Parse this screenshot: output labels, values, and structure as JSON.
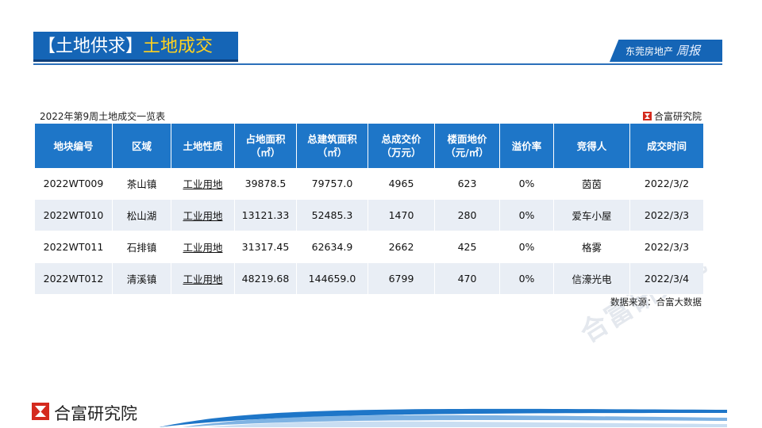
{
  "header": {
    "bracket_title": "【土地供求】",
    "highlight_title": "土地成交",
    "brand_label": "东莞房地产",
    "brand_script": "周报"
  },
  "caption": "2022年第9周土地成交一览表",
  "corner_logo_text": "合富研究院",
  "table": {
    "headers": [
      "地块编号",
      "区域",
      "土地性质",
      "占地面积\n（㎡）",
      "总建筑面积\n（㎡）",
      "总成交价\n（万元）",
      "楼面地价\n（元/㎡）",
      "溢价率",
      "竞得人",
      "成交时间"
    ],
    "rows": [
      [
        "2022WT009",
        "茶山镇",
        "工业用地",
        "39878.5",
        "79757.0",
        "4965",
        "623",
        "0%",
        "茵茵",
        "2022/3/2"
      ],
      [
        "2022WT010",
        "松山湖",
        "工业用地",
        "13121.33",
        "52485.3",
        "1470",
        "280",
        "0%",
        "爱车小屋",
        "2022/3/3"
      ],
      [
        "2022WT011",
        "石排镇",
        "工业用地",
        "31317.45",
        "62634.9",
        "2662",
        "425",
        "0%",
        "格雾",
        "2022/3/3"
      ],
      [
        "2022WT012",
        "清溪镇",
        "工业用地",
        "48219.68",
        "144659.0",
        "6799",
        "470",
        "0%",
        "信濠光电",
        "2022/3/4"
      ]
    ]
  },
  "source": "数据来源：合富大数据",
  "watermark": "合富研究院",
  "footer": {
    "logo_text": "合富研究院"
  },
  "colors": {
    "brand_blue": "#1565b6",
    "header_blue": "#1e76c8",
    "highlight_yellow": "#ffd21f",
    "stripe": "#e9eef5",
    "logo_red": "#d42a1e"
  }
}
